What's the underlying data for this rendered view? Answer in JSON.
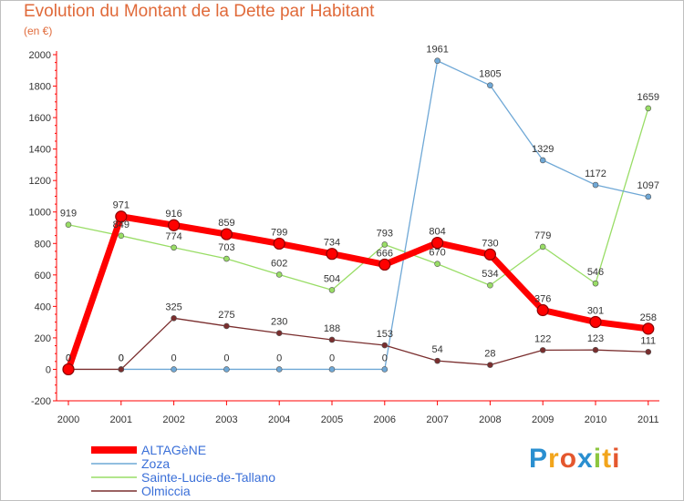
{
  "header": {
    "title": "Evolution du Montant de la Dette par Habitant",
    "unit": "(en €)"
  },
  "logo": {
    "text": "Proxiti",
    "letters": [
      "P",
      "r",
      "o",
      "x",
      "i",
      "t",
      "i"
    ]
  },
  "chart_data": {
    "type": "line",
    "title": "Evolution du Montant de la Dette par Habitant",
    "subtitle": "(en €)",
    "xlabel": "",
    "ylabel": "",
    "x": [
      "2000",
      "2001",
      "2002",
      "2003",
      "2004",
      "2005",
      "2006",
      "2007",
      "2008",
      "2009",
      "2010",
      "2011"
    ],
    "ylim": [
      -200,
      2000
    ],
    "yticks": [
      -200,
      0,
      200,
      400,
      600,
      800,
      1000,
      1200,
      1400,
      1600,
      1800,
      2000
    ],
    "grid": false,
    "legend_position": "bottom-left",
    "series": [
      {
        "name": "ALTAGèNE",
        "color": "#ff0000",
        "values": [
          0,
          971,
          916,
          859,
          799,
          734,
          666,
          804,
          730,
          376,
          301,
          258
        ],
        "labels": [
          "0",
          "971",
          "916",
          "859",
          "799",
          "734",
          "666",
          "804",
          "730",
          "376",
          "301",
          "258"
        ]
      },
      {
        "name": "Zoza",
        "color": "#6fa8d6",
        "values": [
          0,
          0,
          0,
          0,
          0,
          0,
          0,
          1961,
          1805,
          1329,
          1172,
          1097
        ],
        "labels": [
          "0",
          "0",
          "0",
          "0",
          "0",
          "0",
          "0",
          "1961",
          "1805",
          "1329",
          "1172",
          "1097"
        ]
      },
      {
        "name": "Sainte-Lucie-de-Tallano",
        "color": "#99dd66",
        "values": [
          919,
          849,
          774,
          703,
          602,
          504,
          793,
          670,
          534,
          779,
          546,
          1659
        ],
        "labels": [
          "919",
          "849",
          "774",
          "703",
          "602",
          "504",
          "793",
          "670",
          "534",
          "779",
          "546",
          "1659"
        ]
      },
      {
        "name": "Olmiccia",
        "color": "#7a2e2e",
        "values": [
          0,
          0,
          325,
          275,
          230,
          188,
          153,
          54,
          28,
          122,
          123,
          111
        ],
        "labels": [
          "0",
          "0",
          "325",
          "275",
          "230",
          "188",
          "153",
          "54",
          "28",
          "122",
          "123",
          "111"
        ]
      }
    ]
  }
}
